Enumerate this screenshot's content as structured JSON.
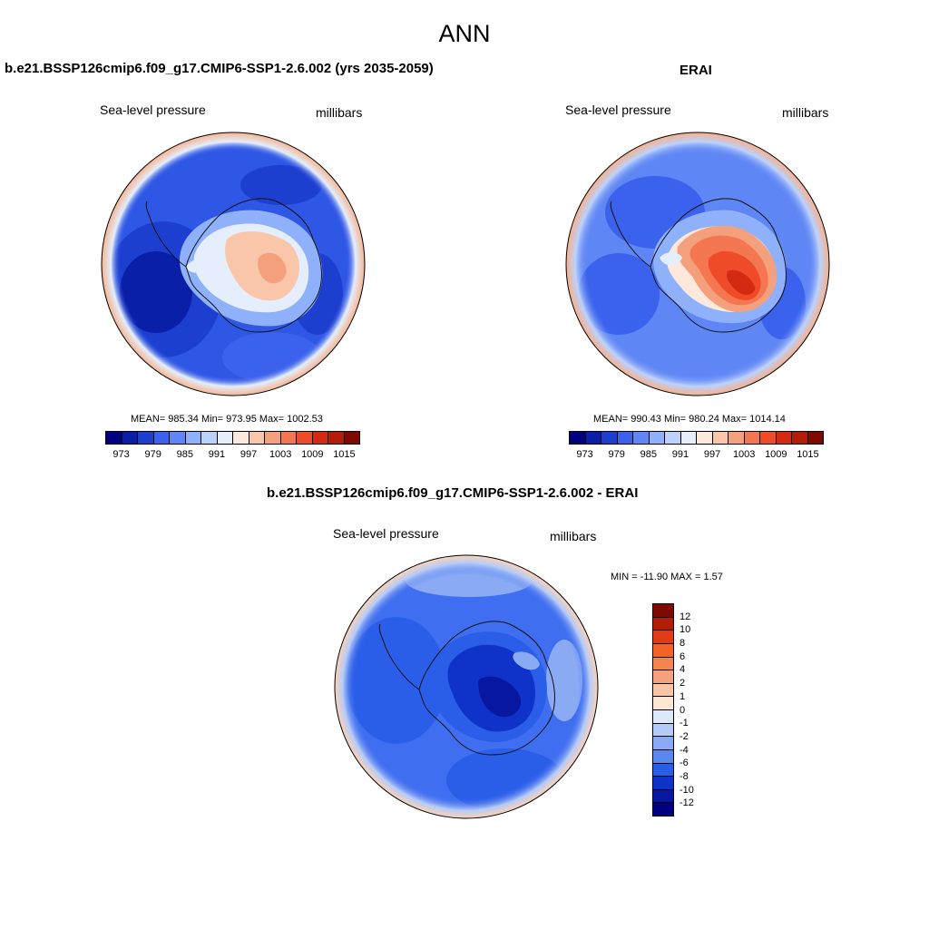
{
  "figure": {
    "title": "ANN"
  },
  "panels": {
    "model": {
      "title": "b.e21.BSSP126cmip6.f09_g17.CMIP6-SSP1-2.6.002 (yrs 2035-2059)",
      "variable": "Sea-level pressure",
      "units": "millibars",
      "stats": "MEAN= 985.34  Min= 973.95  Max= 1002.53"
    },
    "obs": {
      "title": "ERAI",
      "variable": "Sea-level pressure",
      "units": "millibars",
      "stats": "MEAN= 990.43  Min= 980.24  Max= 1014.14"
    },
    "diff": {
      "title": "b.e21.BSSP126cmip6.f09_g17.CMIP6-SSP1-2.6.002 - ERAI",
      "variable": "Sea-level pressure",
      "units": "millibars",
      "stats": "MIN = -11.90 MAX =   1.57"
    }
  },
  "colorbar_main": {
    "colors": [
      "#000080",
      "#0a1fa8",
      "#1d3fd0",
      "#3a62ec",
      "#5f86f5",
      "#8fb0fa",
      "#bcd2fb",
      "#e4eefc",
      "#fde9dc",
      "#f9c6aa",
      "#f5a07d",
      "#f47752",
      "#ef4b28",
      "#d52a12",
      "#b11d06",
      "#7e0a02"
    ],
    "tick_labels": [
      "973",
      "979",
      "985",
      "991",
      "997",
      "1003",
      "1009",
      "1015"
    ]
  },
  "colorbar_diff": {
    "colors": [
      "#7e0a02",
      "#b11d06",
      "#e23a14",
      "#f4622b",
      "#f5854f",
      "#f7a07c",
      "#fbc4a4",
      "#fde6d4",
      "#dce8fb",
      "#b5cbf7",
      "#8aabf4",
      "#5a86ef",
      "#2b5ee8",
      "#0f33c9",
      "#0717a0",
      "#000080"
    ],
    "tick_labels": [
      "12",
      "10",
      "8",
      "6",
      "4",
      "2",
      "1",
      "0",
      "-1",
      "-2",
      "-4",
      "-6",
      "-8",
      "-10",
      "-12"
    ]
  }
}
